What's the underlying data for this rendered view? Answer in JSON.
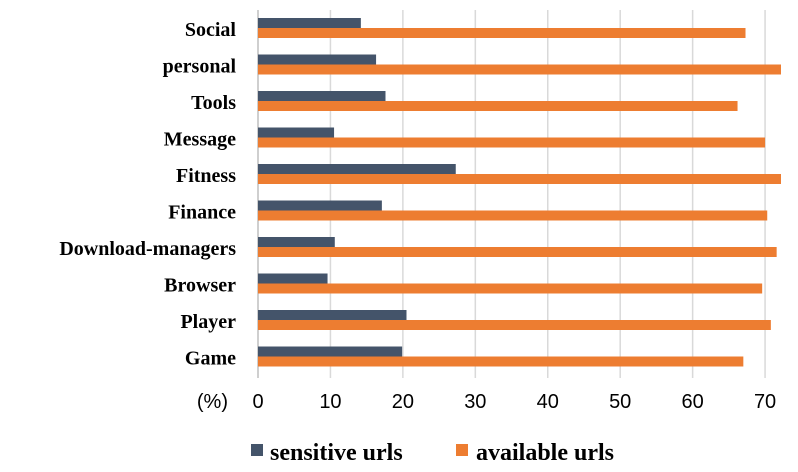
{
  "chart_data": {
    "type": "bar",
    "orientation": "horizontal",
    "categories": [
      "Social",
      "personal",
      "Tools",
      "Message",
      "Fitness",
      "Finance",
      "Download-managers",
      "Browser",
      "Player",
      "Game"
    ],
    "series": [
      {
        "name": "sensitive urls",
        "color": "#44546a",
        "values": [
          14.2,
          16.3,
          17.6,
          10.5,
          27.3,
          17.1,
          10.6,
          9.6,
          20.5,
          19.9
        ]
      },
      {
        "name": "available urls",
        "color": "#ed7d31",
        "values": [
          67.3,
          72.2,
          66.2,
          70.0,
          72.2,
          70.3,
          71.6,
          69.6,
          70.8,
          67.0
        ]
      }
    ],
    "x_unit_label": "(%)",
    "xticks": [
      0,
      10,
      20,
      30,
      40,
      50,
      60,
      70
    ],
    "xlim": [
      0,
      72.2
    ],
    "grid": true,
    "legend_position": "bottom"
  }
}
